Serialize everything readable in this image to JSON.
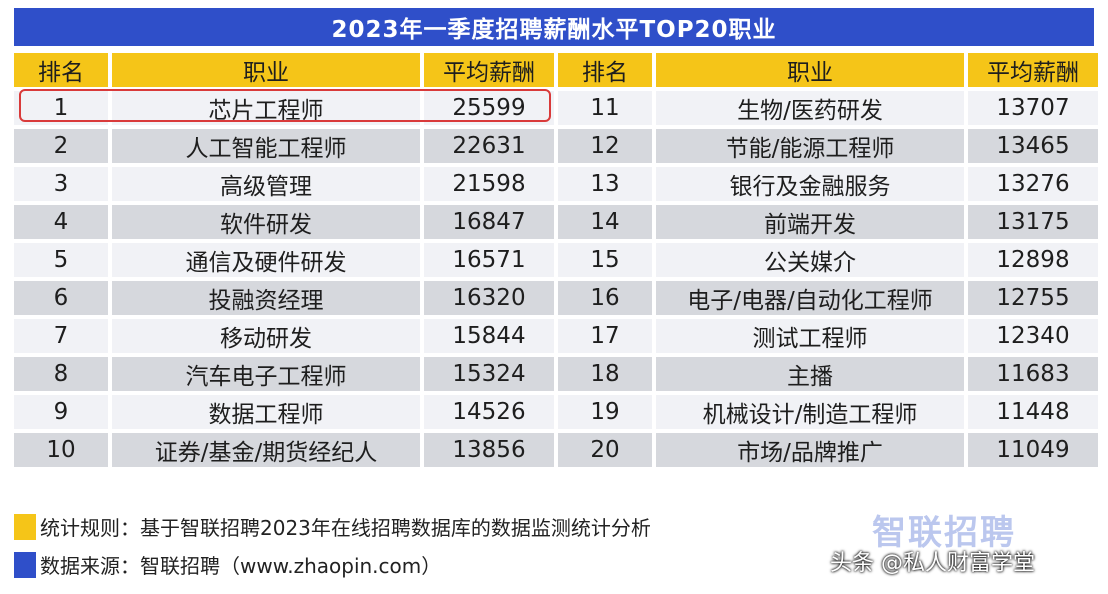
{
  "title": "2023年一季度招聘薪酬水平TOP20职业",
  "headers": [
    "排名",
    "职业",
    "平均薪酬",
    "排名",
    "职业",
    "平均薪酬"
  ],
  "rows": [
    [
      "1",
      "芯片工程师",
      "25599",
      "11",
      "生物/医药研发",
      "13707"
    ],
    [
      "2",
      "人工智能工程师",
      "22631",
      "12",
      "节能/能源工程师",
      "13465"
    ],
    [
      "3",
      "高级管理",
      "21598",
      "13",
      "银行及金融服务",
      "13276"
    ],
    [
      "4",
      "软件研发",
      "16847",
      "14",
      "前端开发",
      "13175"
    ],
    [
      "5",
      "通信及硬件研发",
      "16571",
      "15",
      "公关媒介",
      "12898"
    ],
    [
      "6",
      "投融资经理",
      "16320",
      "16",
      "电子/电器/自动化工程师",
      "12755"
    ],
    [
      "7",
      "移动研发",
      "15844",
      "17",
      "测试工程师",
      "12340"
    ],
    [
      "8",
      "汽车电子工程师",
      "15324",
      "18",
      "主播",
      "11683"
    ],
    [
      "9",
      "数据工程师",
      "14526",
      "19",
      "机械设计/制造工程师",
      "11448"
    ],
    [
      "10",
      "证券/基金/期货经纪人",
      "13856",
      "20",
      "市场/品牌推广",
      "11049"
    ]
  ],
  "footnotes": {
    "rule": "统计规则：基于智联招聘2023年在线招聘数据库的数据监测统计分析",
    "source": "数据来源：智联招聘（www.zhaopin.com）"
  },
  "logo_text": "智联招聘",
  "watermark": "头条 @私人财富学堂",
  "colors": {
    "header_blue": "#2f4fc9",
    "header_yellow": "#f5c518",
    "highlight_red": "#d93a3a"
  }
}
